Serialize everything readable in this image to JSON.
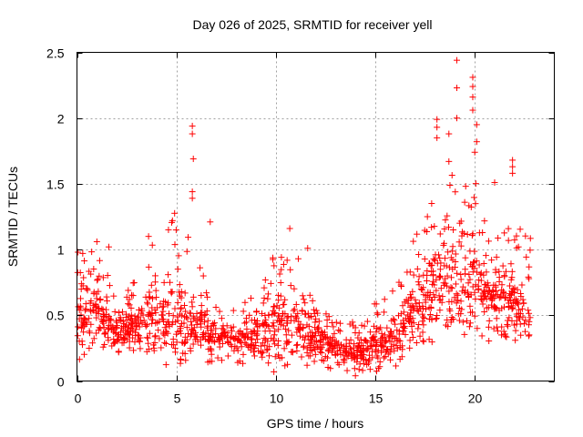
{
  "chart_data": {
    "type": "scatter",
    "title": "Day 026 of 2025, SRMTID for receiver yell",
    "xlabel": "GPS time / hours",
    "ylabel": "SRMTID / TECUs",
    "xlim": [
      0,
      24
    ],
    "ylim": [
      0,
      2.5
    ],
    "xticks": [
      0,
      5,
      10,
      15,
      20
    ],
    "xtick_labels": [
      "0",
      "5",
      "10",
      "15",
      "20"
    ],
    "yticks": [
      0,
      0.5,
      1,
      1.5,
      2,
      2.5
    ],
    "ytick_labels": [
      "0",
      "0.5",
      "1",
      "1.5",
      "2",
      "2.5"
    ],
    "grid": true,
    "legend": "none",
    "marker": "plus",
    "series_color": "#ff0000",
    "series": [
      {
        "name": "SRMTID",
        "hourly_profile": [
          {
            "hour": 0,
            "median": 0.5,
            "low": 0.15,
            "high": 0.95
          },
          {
            "hour": 1,
            "median": 0.55,
            "low": 0.25,
            "high": 1.05
          },
          {
            "hour": 2,
            "median": 0.38,
            "low": 0.2,
            "high": 0.6
          },
          {
            "hour": 3,
            "median": 0.4,
            "low": 0.18,
            "high": 0.8
          },
          {
            "hour": 4,
            "median": 0.5,
            "low": 0.2,
            "high": 1.1
          },
          {
            "hour": 5,
            "median": 0.45,
            "low": 0.15,
            "high": 1.3
          },
          {
            "hour": 6,
            "median": 0.4,
            "low": 0.15,
            "high": 0.95
          },
          {
            "hour": 7,
            "median": 0.35,
            "low": 0.12,
            "high": 0.6
          },
          {
            "hour": 8,
            "median": 0.3,
            "low": 0.1,
            "high": 0.55
          },
          {
            "hour": 9,
            "median": 0.32,
            "low": 0.1,
            "high": 0.7
          },
          {
            "hour": 10,
            "median": 0.4,
            "low": 0.1,
            "high": 1.0
          },
          {
            "hour": 11,
            "median": 0.38,
            "low": 0.12,
            "high": 1.0
          },
          {
            "hour": 12,
            "median": 0.35,
            "low": 0.1,
            "high": 0.6
          },
          {
            "hour": 13,
            "median": 0.25,
            "low": 0.08,
            "high": 0.45
          },
          {
            "hour": 14,
            "median": 0.22,
            "low": 0.05,
            "high": 0.45
          },
          {
            "hour": 15,
            "median": 0.25,
            "low": 0.08,
            "high": 0.65
          },
          {
            "hour": 16,
            "median": 0.35,
            "low": 0.1,
            "high": 0.7
          },
          {
            "hour": 17,
            "median": 0.55,
            "low": 0.25,
            "high": 1.15
          },
          {
            "hour": 18,
            "median": 0.7,
            "low": 0.3,
            "high": 1.4
          },
          {
            "hour": 19,
            "median": 0.8,
            "low": 0.35,
            "high": 1.6
          },
          {
            "hour": 20,
            "median": 0.8,
            "low": 0.3,
            "high": 1.6
          },
          {
            "hour": 21,
            "median": 0.65,
            "low": 0.3,
            "high": 1.3
          },
          {
            "hour": 22,
            "median": 0.6,
            "low": 0.3,
            "high": 1.2
          },
          {
            "hour": 22.8,
            "median": 0.55,
            "low": 0.35,
            "high": 1.15
          }
        ],
        "notable_points": [
          {
            "x": 0.05,
            "y": 0.98
          },
          {
            "x": 1.0,
            "y": 1.06
          },
          {
            "x": 1.6,
            "y": 1.02
          },
          {
            "x": 3.6,
            "y": 1.1
          },
          {
            "x": 4.6,
            "y": 1.15
          },
          {
            "x": 4.8,
            "y": 1.22
          },
          {
            "x": 5.8,
            "y": 1.94
          },
          {
            "x": 5.8,
            "y": 1.88
          },
          {
            "x": 5.85,
            "y": 1.69
          },
          {
            "x": 5.8,
            "y": 1.44
          },
          {
            "x": 5.8,
            "y": 1.39
          },
          {
            "x": 6.7,
            "y": 1.21
          },
          {
            "x": 9.9,
            "y": 0.07
          },
          {
            "x": 10.7,
            "y": 1.16
          },
          {
            "x": 11.6,
            "y": 1.01
          },
          {
            "x": 14.0,
            "y": 0.04
          },
          {
            "x": 18.1,
            "y": 1.99
          },
          {
            "x": 18.1,
            "y": 1.93
          },
          {
            "x": 18.1,
            "y": 1.85
          },
          {
            "x": 18.7,
            "y": 1.88
          },
          {
            "x": 18.7,
            "y": 1.67
          },
          {
            "x": 19.1,
            "y": 2.44
          },
          {
            "x": 19.1,
            "y": 2.23
          },
          {
            "x": 19.1,
            "y": 2.0
          },
          {
            "x": 19.9,
            "y": 2.31
          },
          {
            "x": 19.9,
            "y": 2.24
          },
          {
            "x": 19.9,
            "y": 2.16
          },
          {
            "x": 19.9,
            "y": 2.06
          },
          {
            "x": 20.1,
            "y": 1.95
          },
          {
            "x": 20.1,
            "y": 1.82
          },
          {
            "x": 20.0,
            "y": 1.74
          },
          {
            "x": 21.0,
            "y": 1.51
          },
          {
            "x": 21.9,
            "y": 1.68
          },
          {
            "x": 21.9,
            "y": 1.63
          },
          {
            "x": 21.9,
            "y": 1.58
          }
        ]
      }
    ]
  }
}
